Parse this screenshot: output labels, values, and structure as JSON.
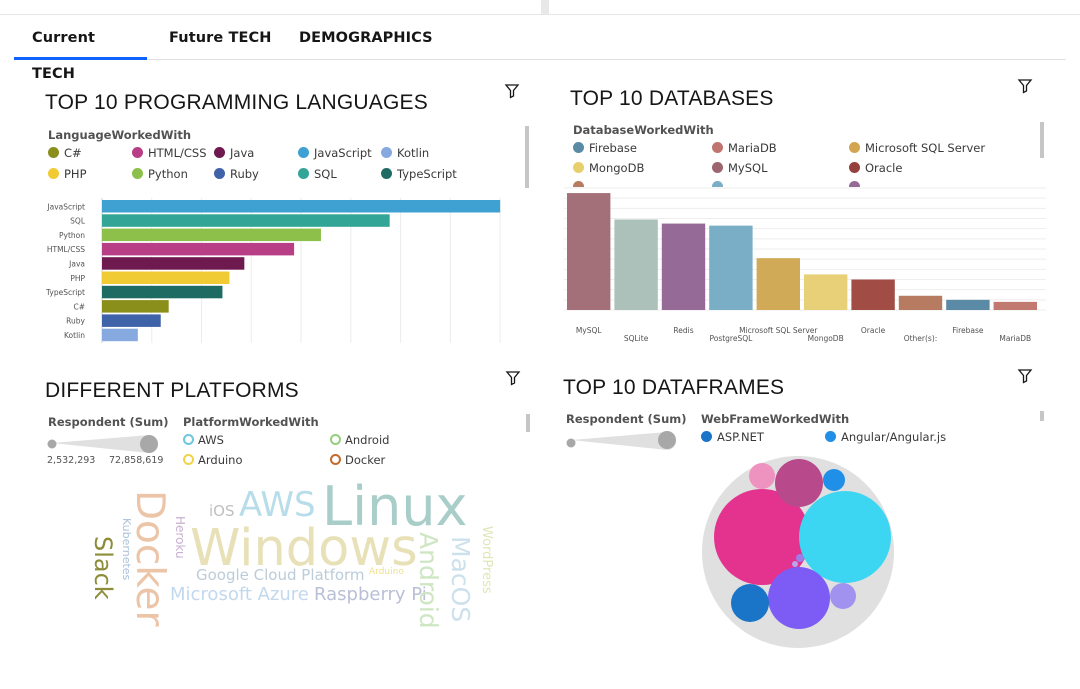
{
  "tabs": [
    {
      "label": "Current TECH",
      "active": true
    },
    {
      "label": "Future TECH",
      "active": false
    },
    {
      "label": "DEMOGRAPHICS",
      "active": false
    }
  ],
  "languages": {
    "title": "TOP 10 PROGRAMMING LANGUAGES",
    "legend_title": "LanguageWorkedWith",
    "legend": [
      {
        "label": "C#",
        "color": "#8a8f1c"
      },
      {
        "label": "HTML/CSS",
        "color": "#b83f86"
      },
      {
        "label": "Java",
        "color": "#6e1a4f"
      },
      {
        "label": "JavaScript",
        "color": "#3fa0d2"
      },
      {
        "label": "Kotlin",
        "color": "#86a9e0"
      },
      {
        "label": "PHP",
        "color": "#f1cb34"
      },
      {
        "label": "Python",
        "color": "#8cc04a"
      },
      {
        "label": "Ruby",
        "color": "#3f62a8"
      },
      {
        "label": "SQL",
        "color": "#32a596"
      },
      {
        "label": "TypeScript",
        "color": "#1d6b63"
      }
    ]
  },
  "databases": {
    "title": "TOP 10 DATABASES",
    "legend_title": "DatabaseWorkedWith",
    "legend": [
      {
        "label": "Firebase",
        "color": "#5a8aa4"
      },
      {
        "label": "MariaDB",
        "color": "#c0746e"
      },
      {
        "label": "Microsoft SQL Server",
        "color": "#d3a551"
      },
      {
        "label": "MongoDB",
        "color": "#e8cf6e"
      },
      {
        "label": "MySQL",
        "color": "#9c6570"
      },
      {
        "label": "Oracle",
        "color": "#96413d"
      }
    ]
  },
  "platforms": {
    "title": "DIFFERENT PLATFORMS",
    "size_title": "Respondent (Sum)",
    "size_min": "2,532,293",
    "size_max": "72,858,619",
    "legend_title": "PlatformWorkedWith",
    "legend": [
      {
        "label": "AWS",
        "color": "#6ec6e0"
      },
      {
        "label": "Android",
        "color": "#94cf7c"
      },
      {
        "label": "Arduino",
        "color": "#eed44a"
      },
      {
        "label": "Docker",
        "color": "#c56a2e"
      }
    ],
    "words": [
      {
        "text": "Linux",
        "color": "#a9cdc8"
      },
      {
        "text": "AWS",
        "color": "#b7dcea"
      },
      {
        "text": "iOS",
        "color": "#bfbfbf"
      },
      {
        "text": "Windows",
        "color": "#e8e1b8"
      },
      {
        "text": "Docker",
        "color": "#ecc4a7"
      },
      {
        "text": "Slack",
        "color": "#8c8c39"
      },
      {
        "text": "Kubernetes",
        "color": "#a9c0d9"
      },
      {
        "text": "Heroku",
        "color": "#c9afd0"
      },
      {
        "text": "Google Cloud Platform",
        "color": "#bcccd9"
      },
      {
        "text": "Microsoft Azure",
        "color": "#c2d8ed"
      },
      {
        "text": "Raspberry Pi",
        "color": "#b9bfd6"
      },
      {
        "text": "Arduino",
        "color": "#efe08c"
      },
      {
        "text": "Android",
        "color": "#cfe6c4"
      },
      {
        "text": "MacOS",
        "color": "#cde1ec"
      },
      {
        "text": "WordPress",
        "color": "#dde7b8"
      }
    ]
  },
  "dataframes": {
    "title": "TOP 10 DATAFRAMES",
    "size_title": "Respondent (Sum)",
    "legend_title": "WebFrameWorkedWith",
    "legend": [
      {
        "label": "ASP.NET",
        "color": "#1a74c8"
      },
      {
        "label": "Angular/Angular.js",
        "color": "#1f8fe8"
      }
    ]
  },
  "chart_data": [
    {
      "type": "bar",
      "orientation": "horizontal",
      "categories": [
        "JavaScript",
        "SQL",
        "Python",
        "HTML/CSS",
        "Java",
        "PHP",
        "TypeScript",
        "C#",
        "Ruby",
        "Kotlin"
      ],
      "values": [
        400,
        289,
        220,
        193,
        143,
        128,
        121,
        67,
        59,
        36
      ],
      "colors": [
        "#3fa0d2",
        "#32a596",
        "#8cc04a",
        "#b83f86",
        "#6e1a4f",
        "#f1cb34",
        "#1d6b63",
        "#8a8f1c",
        "#3f62a8",
        "#86a9e0"
      ],
      "xlim": [
        0,
        430
      ],
      "grid": true
    },
    {
      "type": "bar",
      "categories": [
        "MySQL",
        "SQLite",
        "Redis",
        "PostgreSQL",
        "Microsoft SQL Server",
        "MongoDB",
        "Oracle",
        "Other(s):",
        "Firebase",
        "MariaDB"
      ],
      "values": [
        115,
        89,
        85,
        83,
        51,
        35,
        30,
        14,
        10,
        8
      ],
      "colors": [
        "#a3707a",
        "#abc1b9",
        "#956a96",
        "#7aaec6",
        "#d1aa58",
        "#e8d079",
        "#a24c46",
        "#b67b60",
        "#5b8aa6",
        "#c2796f"
      ],
      "ylim": [
        0,
        120
      ],
      "grid": true
    }
  ]
}
